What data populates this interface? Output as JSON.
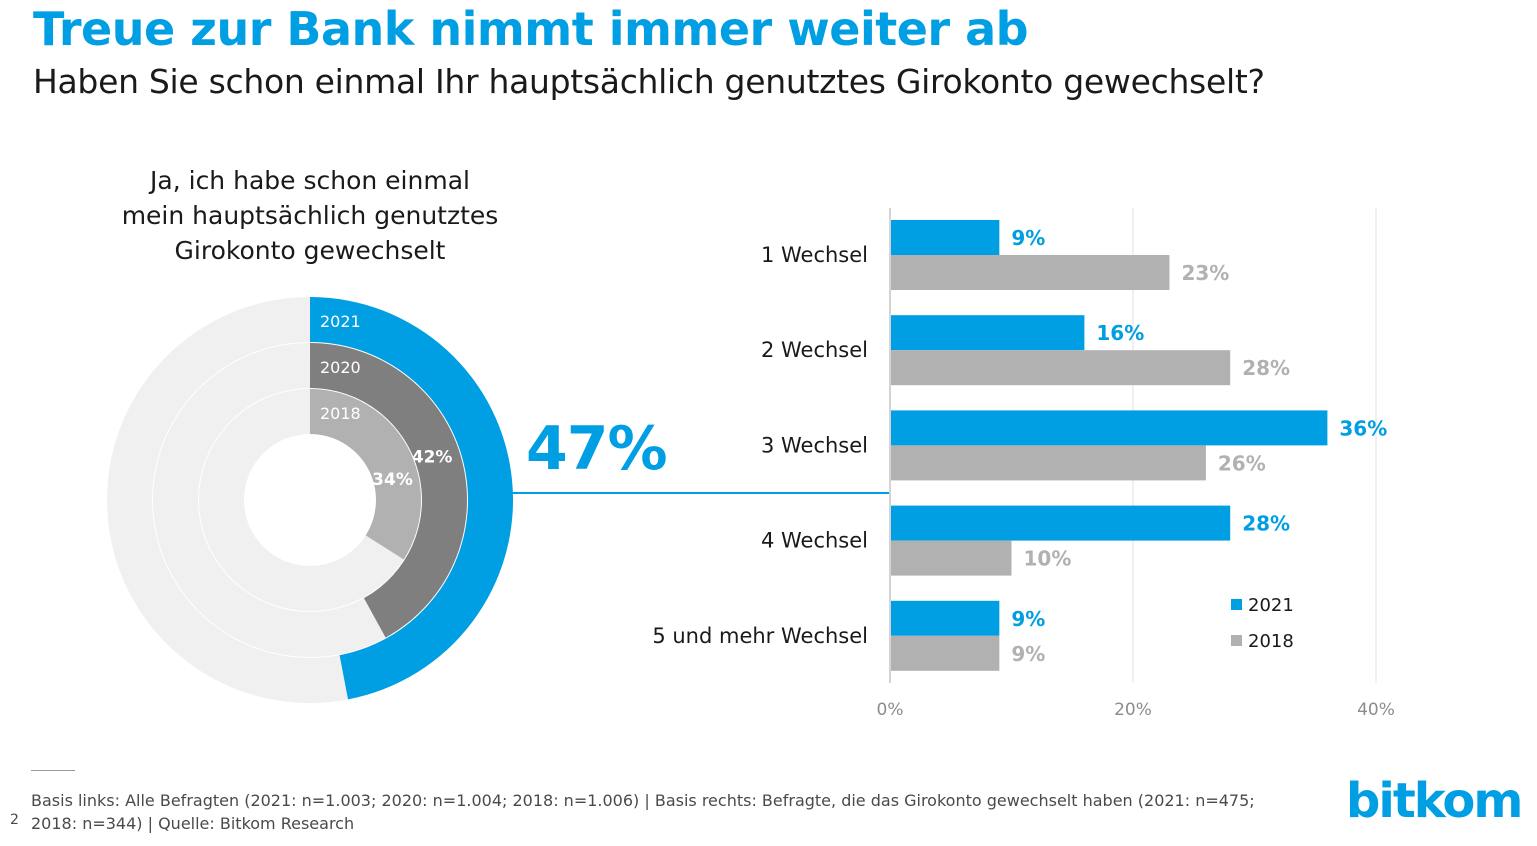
{
  "header": {
    "title": "Treue zur Bank nimmt immer weiter ab",
    "subtitle": "Haben Sie schon einmal Ihr hauptsächlich genutztes Girokonto gewechselt?"
  },
  "colors": {
    "blue": "#009ee3",
    "dark_gray": "#7f7f7f",
    "mid_gray": "#b1b1b1",
    "light_gray": "#f0f0f0",
    "axis_gray": "#8c8c8c"
  },
  "highlight_value": "47%",
  "footer": {
    "line1": "Basis links: Alle Befragten (2021: n=1.003; 2020: n=1.004; 2018: n=1.006) | Basis rechts: Befragte, die das Girokonto gewechselt haben (2021: n=475;",
    "line2": "2018: n=344) | Quelle: Bitkom Research",
    "page_number": "2"
  },
  "logo_text": "bitkom",
  "chart_data": [
    {
      "type": "pie",
      "variant": "nested-donut",
      "title_lines": [
        "Ja, ich habe schon einmal",
        "mein hauptsächlich genutztes",
        "Girokonto gewechselt"
      ],
      "rings": [
        {
          "name": "2021",
          "value": 47,
          "label": "",
          "color": "#009ee3"
        },
        {
          "name": "2020",
          "value": 42,
          "label": "42%",
          "color": "#7f7f7f"
        },
        {
          "name": "2018",
          "value": 34,
          "label": "34%",
          "color": "#b1b1b1"
        }
      ],
      "max": 100
    },
    {
      "type": "bar",
      "orientation": "horizontal",
      "categories": [
        "1 Wechsel",
        "2 Wechsel",
        "3 Wechsel",
        "4 Wechsel",
        "5 und mehr Wechsel"
      ],
      "series": [
        {
          "name": "2021",
          "values": [
            9,
            16,
            36,
            28,
            9
          ],
          "color": "#009ee3"
        },
        {
          "name": "2018",
          "values": [
            23,
            28,
            26,
            10,
            9
          ],
          "color": "#b1b1b1"
        }
      ],
      "xlim": [
        0,
        40
      ],
      "xticks": [
        0,
        20,
        40
      ],
      "xtick_labels": [
        "0%",
        "20%",
        "40%"
      ],
      "value_suffix": "%",
      "grid": true,
      "legend_position": "bottom-right"
    }
  ]
}
